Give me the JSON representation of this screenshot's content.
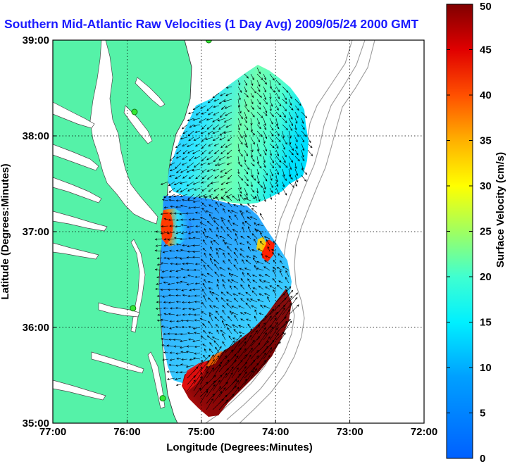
{
  "title": "Southern Mid-Atlantic Raw Velocities (1 Day Avg) 2009/05/24 2000 GMT",
  "map": {
    "xlabel": "Longitude (Degrees:Minutes)",
    "ylabel": "Latitude (Degrees:Minutes)",
    "lon_range": [
      -77,
      -72
    ],
    "lat_range": [
      35,
      39
    ],
    "lon_ticks": [
      {
        "value": -77,
        "label": "77:00"
      },
      {
        "value": -76,
        "label": "76:00"
      },
      {
        "value": -75,
        "label": "75:00"
      },
      {
        "value": -74,
        "label": "74:00"
      },
      {
        "value": -73,
        "label": "73:00"
      },
      {
        "value": -72,
        "label": "72:00"
      }
    ],
    "lat_ticks": [
      {
        "value": 35,
        "label": "35:00"
      },
      {
        "value": 36,
        "label": "36:00"
      },
      {
        "value": 37,
        "label": "37:00"
      },
      {
        "value": 38,
        "label": "38:00"
      },
      {
        "value": 39,
        "label": "39:00"
      }
    ],
    "grid": "dotted",
    "land_color": "#55f2a8",
    "sites": [
      {
        "lon": -75.9,
        "lat": 38.25
      },
      {
        "lon": -75.92,
        "lat": 36.2
      },
      {
        "lon": -75.52,
        "lat": 35.26
      },
      {
        "lon": -74.9,
        "lat": 39.0
      }
    ]
  },
  "colorbar": {
    "label": "Surface Velocity (cm/s)",
    "min": 0,
    "max": 50,
    "colormap": "jet",
    "ticks": [
      {
        "value": 0,
        "label": "0"
      },
      {
        "value": 5,
        "label": "5"
      },
      {
        "value": 10,
        "label": "10"
      },
      {
        "value": 15,
        "label": "15"
      },
      {
        "value": 20,
        "label": "20"
      },
      {
        "value": 25,
        "label": "25"
      },
      {
        "value": 30,
        "label": "30"
      },
      {
        "value": 35,
        "label": "35"
      },
      {
        "value": 40,
        "label": "40"
      },
      {
        "value": 45,
        "label": "45"
      },
      {
        "value": 50,
        "label": "50"
      }
    ]
  }
}
